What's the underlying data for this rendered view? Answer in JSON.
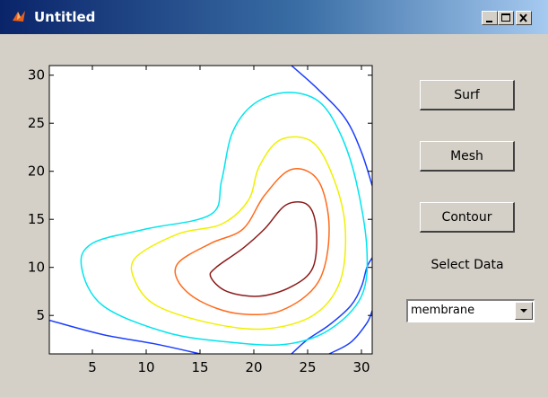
{
  "window": {
    "title": "Untitled",
    "controls": [
      "minimize-icon",
      "maximize-icon",
      "close-icon"
    ]
  },
  "buttons": {
    "surf": "Surf",
    "mesh": "Mesh",
    "contour": "Contour"
  },
  "select_label": "Select Data",
  "dropdown": {
    "value": "membrane"
  },
  "chart_data": {
    "type": "contour",
    "title": "",
    "xlabel": "",
    "ylabel": "",
    "xlim": [
      1,
      31
    ],
    "ylim": [
      1,
      31
    ],
    "xticks": [
      5,
      10,
      15,
      20,
      25,
      30
    ],
    "yticks": [
      5,
      10,
      15,
      20,
      25,
      30
    ],
    "levels": [
      {
        "color": "#1a3dff",
        "points": [
          [
            1,
            4.5
          ],
          [
            6,
            3
          ],
          [
            11,
            2
          ],
          [
            15,
            1
          ]
        ]
      },
      {
        "color": "#1a3dff",
        "points": [
          [
            23.5,
            31
          ],
          [
            26,
            28.5
          ],
          [
            28.5,
            25.5
          ],
          [
            30,
            22
          ],
          [
            31,
            18.5
          ]
        ]
      },
      {
        "color": "#1a3dff",
        "points": [
          [
            27,
            1
          ],
          [
            29,
            2.2
          ],
          [
            30.5,
            4.2
          ],
          [
            31,
            5.5
          ]
        ]
      },
      {
        "color": "#1a3dff",
        "points": [
          [
            31,
            11
          ],
          [
            30.5,
            10
          ],
          [
            30,
            8
          ],
          [
            29,
            6
          ],
          [
            27,
            4
          ],
          [
            25,
            2.5
          ],
          [
            23.5,
            1
          ]
        ]
      },
      {
        "color": "#00e5ee",
        "closed": true,
        "points": [
          [
            5,
            12.5
          ],
          [
            10,
            14
          ],
          [
            16,
            15.5
          ],
          [
            17,
            19
          ],
          [
            18,
            24
          ],
          [
            20,
            27
          ],
          [
            23,
            28.2
          ],
          [
            26,
            27.3
          ],
          [
            28,
            24
          ],
          [
            29.5,
            19
          ],
          [
            30.5,
            12
          ],
          [
            30,
            7
          ],
          [
            27,
            3.5
          ],
          [
            23,
            2
          ],
          [
            18,
            2.2
          ],
          [
            12,
            3.2
          ],
          [
            6,
            6
          ],
          [
            4,
            10
          ]
        ]
      },
      {
        "color": "#f0f000",
        "closed": true,
        "points": [
          [
            9,
            11
          ],
          [
            13,
            13.5
          ],
          [
            17,
            14.5
          ],
          [
            19.5,
            17
          ],
          [
            20.5,
            20.5
          ],
          [
            22.5,
            23.3
          ],
          [
            25.5,
            23
          ],
          [
            27.5,
            19
          ],
          [
            28.5,
            14
          ],
          [
            28,
            8.5
          ],
          [
            25.5,
            5
          ],
          [
            21,
            3.6
          ],
          [
            16,
            4.2
          ],
          [
            11,
            6
          ],
          [
            9,
            8.5
          ]
        ]
      },
      {
        "color": "#ff6a1a",
        "closed": true,
        "points": [
          [
            13,
            10.5
          ],
          [
            16,
            12.5
          ],
          [
            19,
            14
          ],
          [
            21,
            17.5
          ],
          [
            23.5,
            20.2
          ],
          [
            26,
            19
          ],
          [
            27,
            14
          ],
          [
            26,
            8.5
          ],
          [
            22.5,
            5.5
          ],
          [
            18.5,
            5.2
          ],
          [
            15,
            6.5
          ],
          [
            13,
            8.5
          ]
        ]
      },
      {
        "color": "#8b1a1a",
        "closed": true,
        "points": [
          [
            16.5,
            10
          ],
          [
            19,
            12
          ],
          [
            21,
            14
          ],
          [
            23,
            16.5
          ],
          [
            25,
            16.5
          ],
          [
            25.8,
            14
          ],
          [
            25.5,
            10
          ],
          [
            23.5,
            8
          ],
          [
            20.5,
            7
          ],
          [
            17.5,
            7.5
          ],
          [
            16,
            9
          ]
        ]
      }
    ]
  }
}
